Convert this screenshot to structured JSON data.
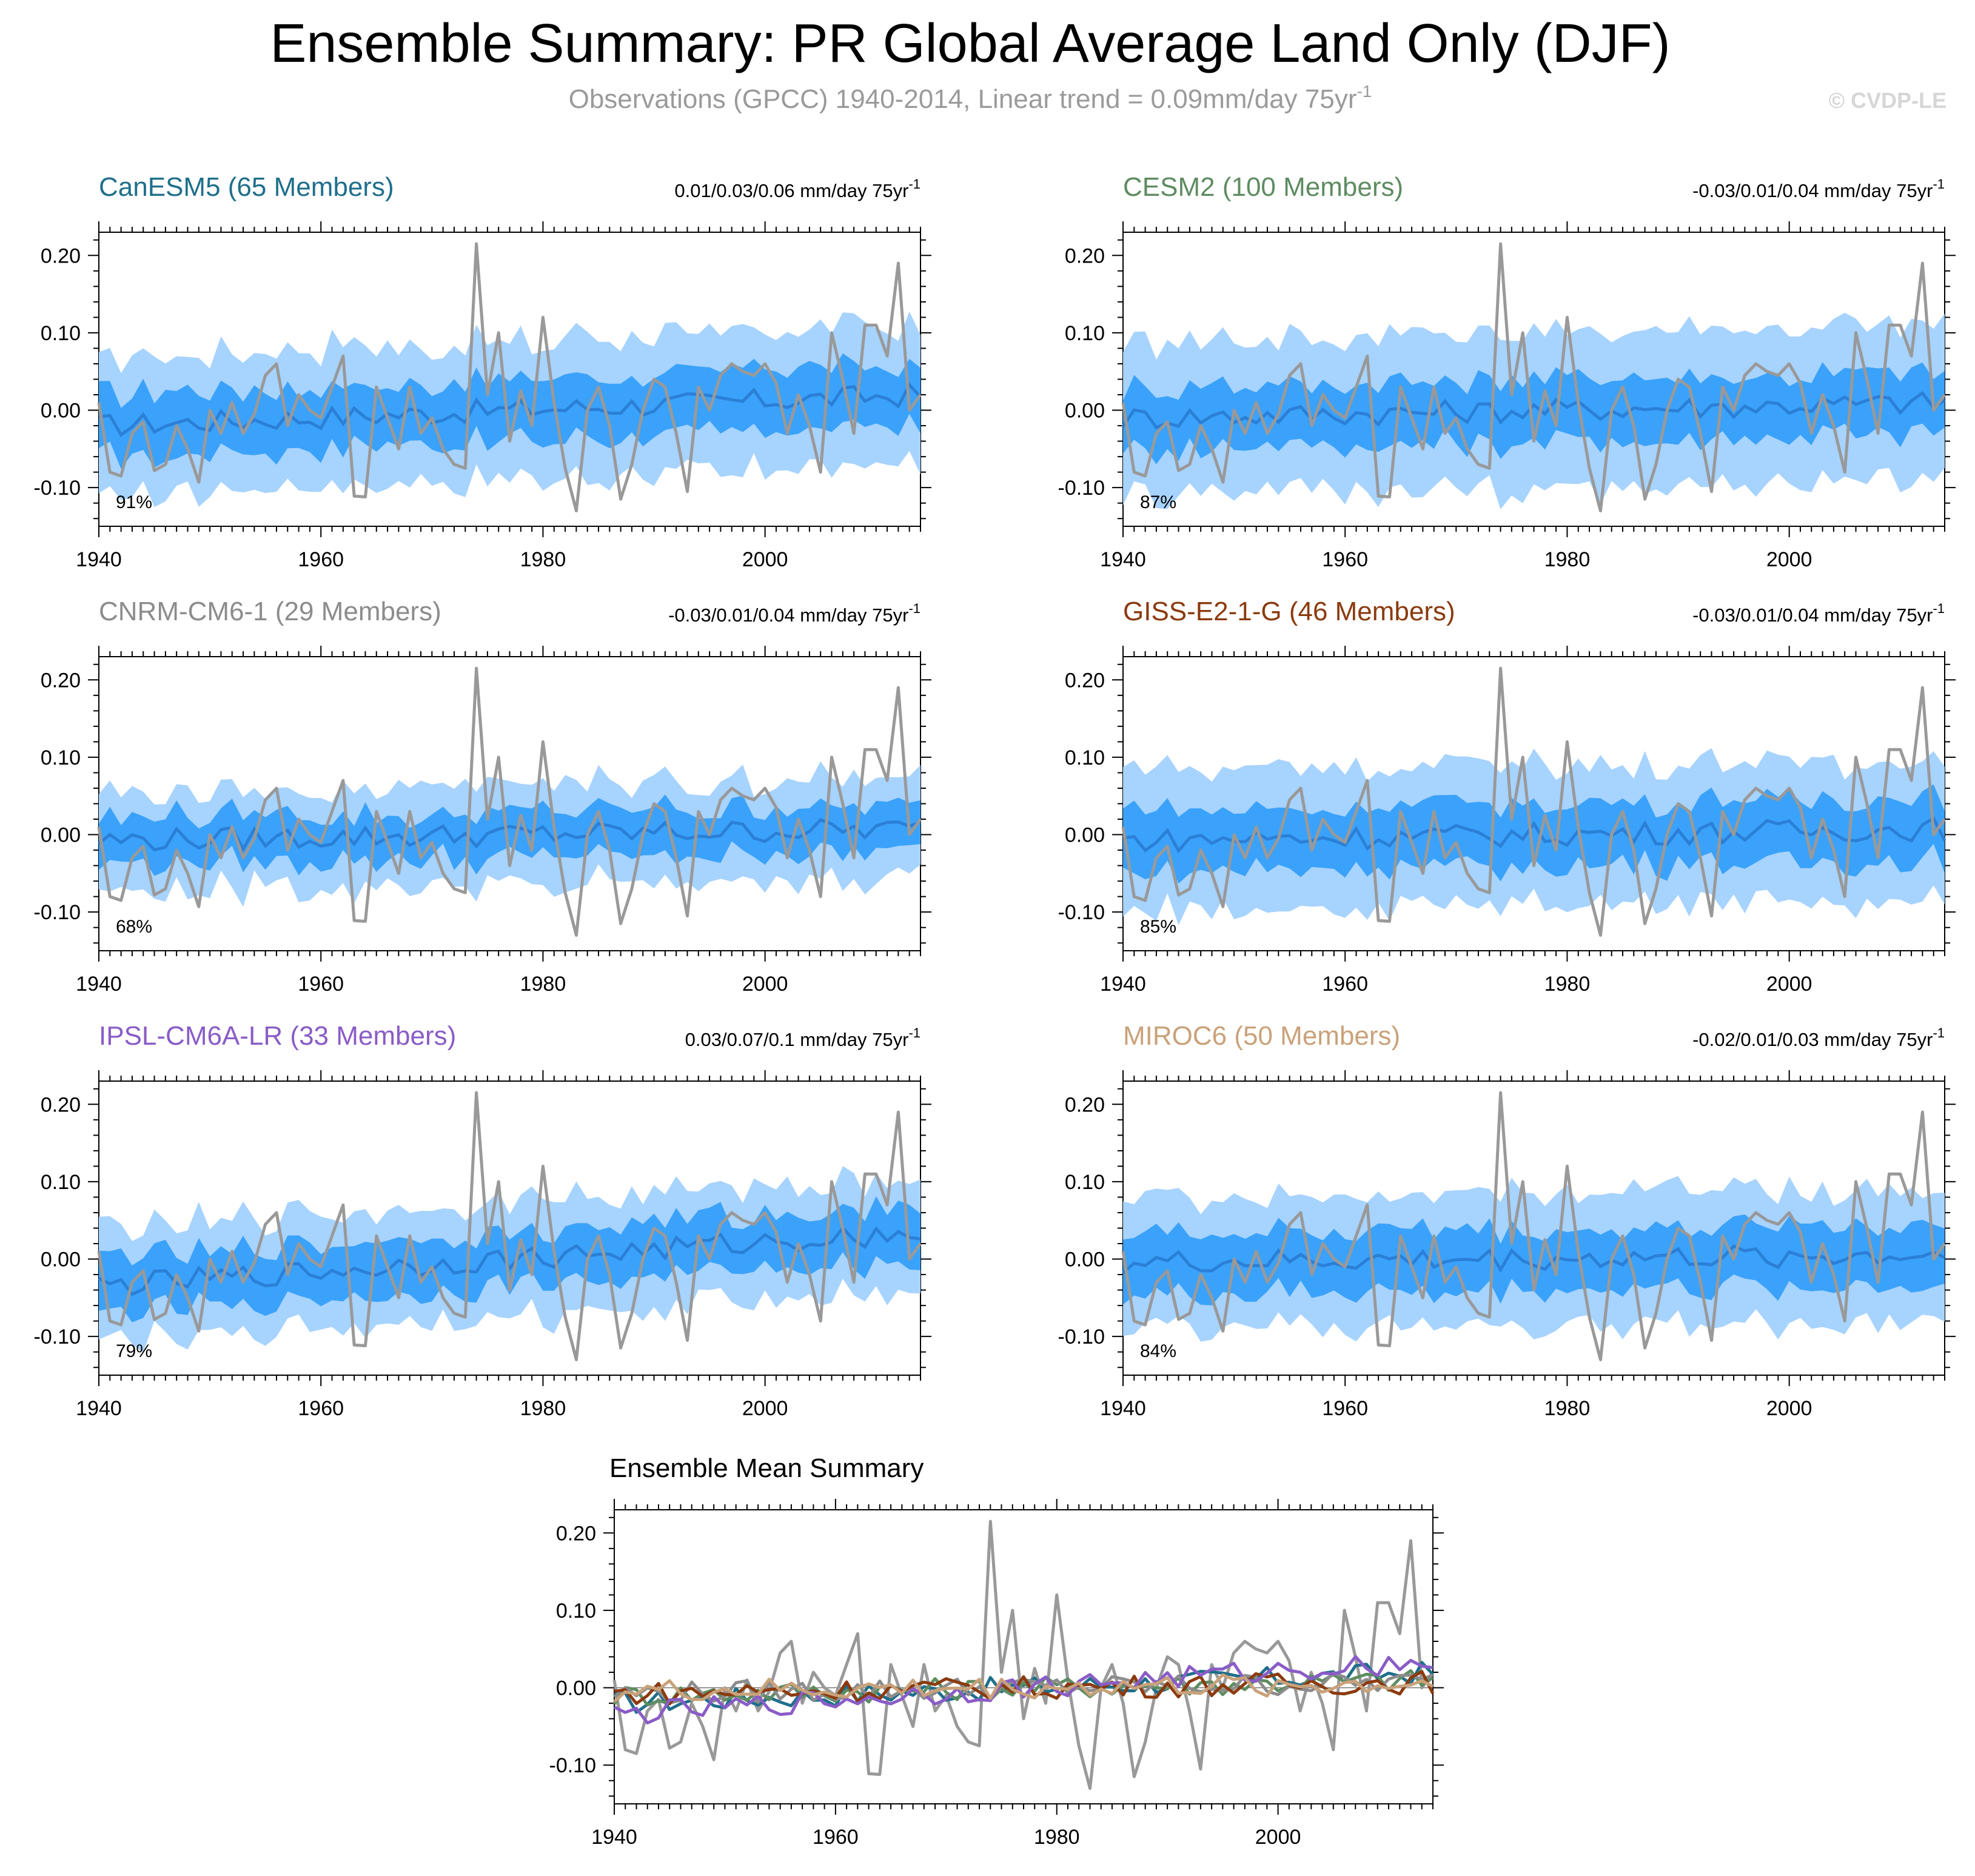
{
  "header": {
    "title": "Ensemble Summary: PR Global Average Land Only (DJF)",
    "subtitle": "Observations (GPCC) 1940-2014, Linear trend = 0.09mm/day 75yr",
    "subtitle_sup": "-1",
    "copyright": "© CVDP-LE"
  },
  "colors": {
    "outer_band": "#a7d3ff",
    "inner_band": "#3aa2fa",
    "ens_mean": "#2b7fd6",
    "obs": "#999999"
  },
  "chart_data": {
    "type": "line",
    "xlim": [
      1940,
      2014
    ],
    "ylim": [
      -0.15,
      0.23
    ],
    "x_ticks": [
      "1940",
      "1960",
      "1980",
      "2000"
    ],
    "y_ticks": [
      "0.20",
      "0.10",
      "0.00",
      "-0.10"
    ],
    "observations": {
      "name": "GPCC",
      "start_year": 1940,
      "values": [
        0.01,
        -0.08,
        -0.085,
        -0.03,
        -0.015,
        -0.078,
        -0.07,
        -0.02,
        -0.05,
        -0.093,
        0.0,
        -0.03,
        0.01,
        -0.03,
        -0.005,
        0.045,
        0.06,
        -0.02,
        0.02,
        0.0,
        -0.01,
        0.03,
        0.07,
        -0.111,
        -0.112,
        0.03,
        -0.01,
        -0.05,
        0.03,
        -0.03,
        -0.01,
        -0.05,
        -0.07,
        -0.075,
        0.215,
        0.02,
        0.1,
        -0.04,
        0.025,
        -0.02,
        0.12,
        0.01,
        -0.075,
        -0.13,
        0.0,
        0.03,
        -0.02,
        -0.115,
        -0.07,
        0.0,
        0.04,
        0.03,
        -0.03,
        -0.105,
        0.03,
        0.0,
        0.045,
        0.06,
        0.05,
        0.045,
        0.06,
        0.035,
        -0.03,
        0.02,
        -0.02,
        -0.08,
        0.1,
        0.04,
        -0.03,
        0.11,
        0.11,
        0.07,
        0.19,
        0.0,
        0.02
      ]
    },
    "panels": [
      {
        "model": "CanESM5",
        "members": "65 Members",
        "color": "#1f6f8b",
        "trend": "0.01/0.03/0.06 mm/day 75yr",
        "trend_sup": "-1",
        "pct": "91%",
        "mean_slope": 0.04,
        "inner_half": 0.04,
        "outer_half": 0.09
      },
      {
        "model": "CESM2",
        "members": "100 Members",
        "color": "#5e8c61",
        "trend": "-0.03/0.01/0.04 mm/day 75yr",
        "trend_sup": "-1",
        "pct": "87%",
        "mean_slope": 0.02,
        "inner_half": 0.04,
        "outer_half": 0.1
      },
      {
        "model": "CNRM-CM6-1",
        "members": "29 Members",
        "color": "#8c8c8c",
        "trend": "-0.03/0.01/0.04 mm/day 75yr",
        "trend_sup": "-1",
        "pct": "68%",
        "mean_slope": 0.015,
        "inner_half": 0.03,
        "outer_half": 0.065
      },
      {
        "model": "GISS-E2-1-G",
        "members": "46 Members",
        "color": "#8b3a0e",
        "trend": "-0.03/0.01/0.04 mm/day 75yr",
        "trend_sup": "-1",
        "pct": "85%",
        "mean_slope": 0.015,
        "inner_half": 0.04,
        "outer_half": 0.09
      },
      {
        "model": "IPSL-CM6A-LR",
        "members": "33 Members",
        "color": "#8a5cc7",
        "trend": "0.03/0.07/0.1 mm/day 75yr",
        "trend_sup": "-1",
        "pct": "79%",
        "mean_slope": 0.07,
        "inner_half": 0.035,
        "outer_half": 0.075
      },
      {
        "model": "MIROC6",
        "members": "50 Members",
        "color": "#c9a27a",
        "trend": "-0.02/0.01/0.03 mm/day 75yr",
        "trend_sup": "-1",
        "pct": "84%",
        "mean_slope": 0.01,
        "inner_half": 0.04,
        "outer_half": 0.085
      }
    ],
    "summary": {
      "title": "Ensemble Mean Summary"
    }
  }
}
